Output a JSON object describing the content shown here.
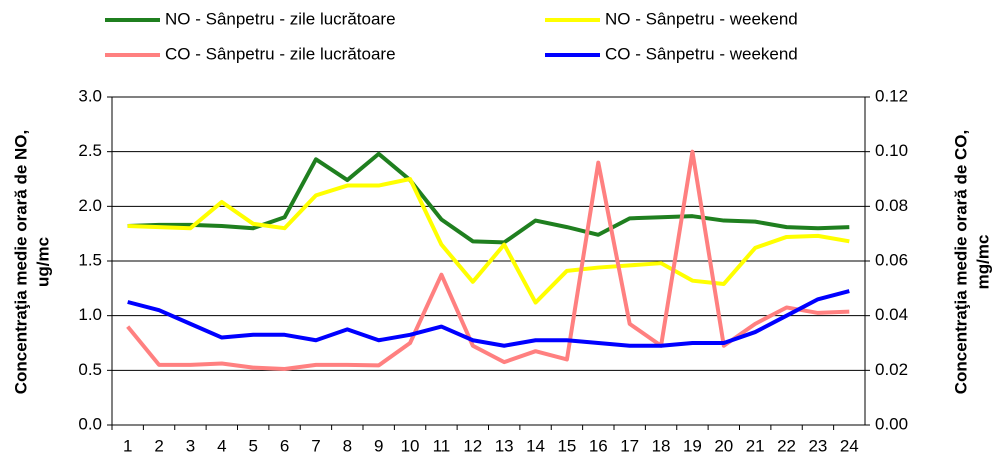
{
  "chart_data": {
    "type": "line",
    "ylabel": [
      "Concentraţia medie orară de NO,",
      "ug/mc"
    ],
    "y2label": [
      "Concentraţia medie orară de CO,",
      "mg/mc"
    ],
    "categories": [
      "1",
      "2",
      "3",
      "4",
      "5",
      "6",
      "7",
      "8",
      "9",
      "10",
      "11",
      "12",
      "13",
      "14",
      "15",
      "16",
      "17",
      "18",
      "19",
      "20",
      "21",
      "22",
      "23",
      "24"
    ],
    "ylim": [
      0,
      3
    ],
    "yticks": [
      {
        "value": 0,
        "label": "0.0"
      },
      0.5,
      {
        "value": 1,
        "label": "1.0"
      },
      1.5,
      {
        "value": 2,
        "label": "2.0"
      },
      2.5,
      {
        "value": 3,
        "label": "3.0"
      }
    ],
    "y2lim": [
      0,
      0.12
    ],
    "y2ticks": [
      {
        "value": 0,
        "label": "0.00"
      },
      {
        "value": 0.02,
        "label": "0.02"
      },
      {
        "value": 0.04,
        "label": "0.04"
      },
      {
        "value": 0.06,
        "label": "0.06"
      },
      {
        "value": 0.08,
        "label": "0.08"
      },
      {
        "value": 0.1,
        "label": "0.10"
      },
      {
        "value": 0.12,
        "label": "0.12"
      }
    ],
    "grid": true,
    "series": [
      {
        "name": "NO - Sânpetru - zile lucrătoare",
        "color": "#1f7f1f",
        "values": [
          1.82,
          1.83,
          1.83,
          1.82,
          1.8,
          1.9,
          2.43,
          2.24,
          2.48,
          2.24,
          1.88,
          1.68,
          1.67,
          1.87,
          1.81,
          1.74,
          1.89,
          1.9,
          1.91,
          1.87,
          1.86,
          1.81,
          1.8,
          1.81
        ]
      },
      {
        "name": "NO - Sânpetru - weekend",
        "color": "#ffff00",
        "values": [
          1.82,
          1.81,
          1.8,
          2.04,
          1.84,
          1.8,
          2.1,
          2.19,
          2.19,
          2.25,
          1.65,
          1.31,
          1.65,
          1.12,
          1.41,
          1.44,
          1.46,
          1.48,
          1.32,
          1.29,
          1.62,
          1.72,
          1.73,
          1.68
        ]
      },
      {
        "name": "CO - Sânpetru - zile lucrătoare",
        "color": "#ff8080",
        "axis": "y2",
        "values": [
          0.036,
          0.022,
          0.022,
          0.0225,
          0.021,
          0.0205,
          0.022,
          0.022,
          0.0218,
          0.03,
          0.055,
          0.029,
          0.023,
          0.027,
          0.024,
          0.096,
          0.037,
          0.029,
          0.1,
          0.029,
          0.037,
          0.043,
          0.041,
          0.0415
        ]
      },
      {
        "name": "CO - Sânpetru - weekend",
        "color": "#0000ff",
        "axis": "y2",
        "values": [
          0.045,
          0.042,
          0.037,
          0.032,
          0.033,
          0.033,
          0.031,
          0.035,
          0.031,
          0.033,
          0.036,
          0.031,
          0.029,
          0.031,
          0.031,
          0.03,
          0.029,
          0.029,
          0.03,
          0.03,
          0.034,
          0.04,
          0.046,
          0.049
        ]
      }
    ]
  }
}
